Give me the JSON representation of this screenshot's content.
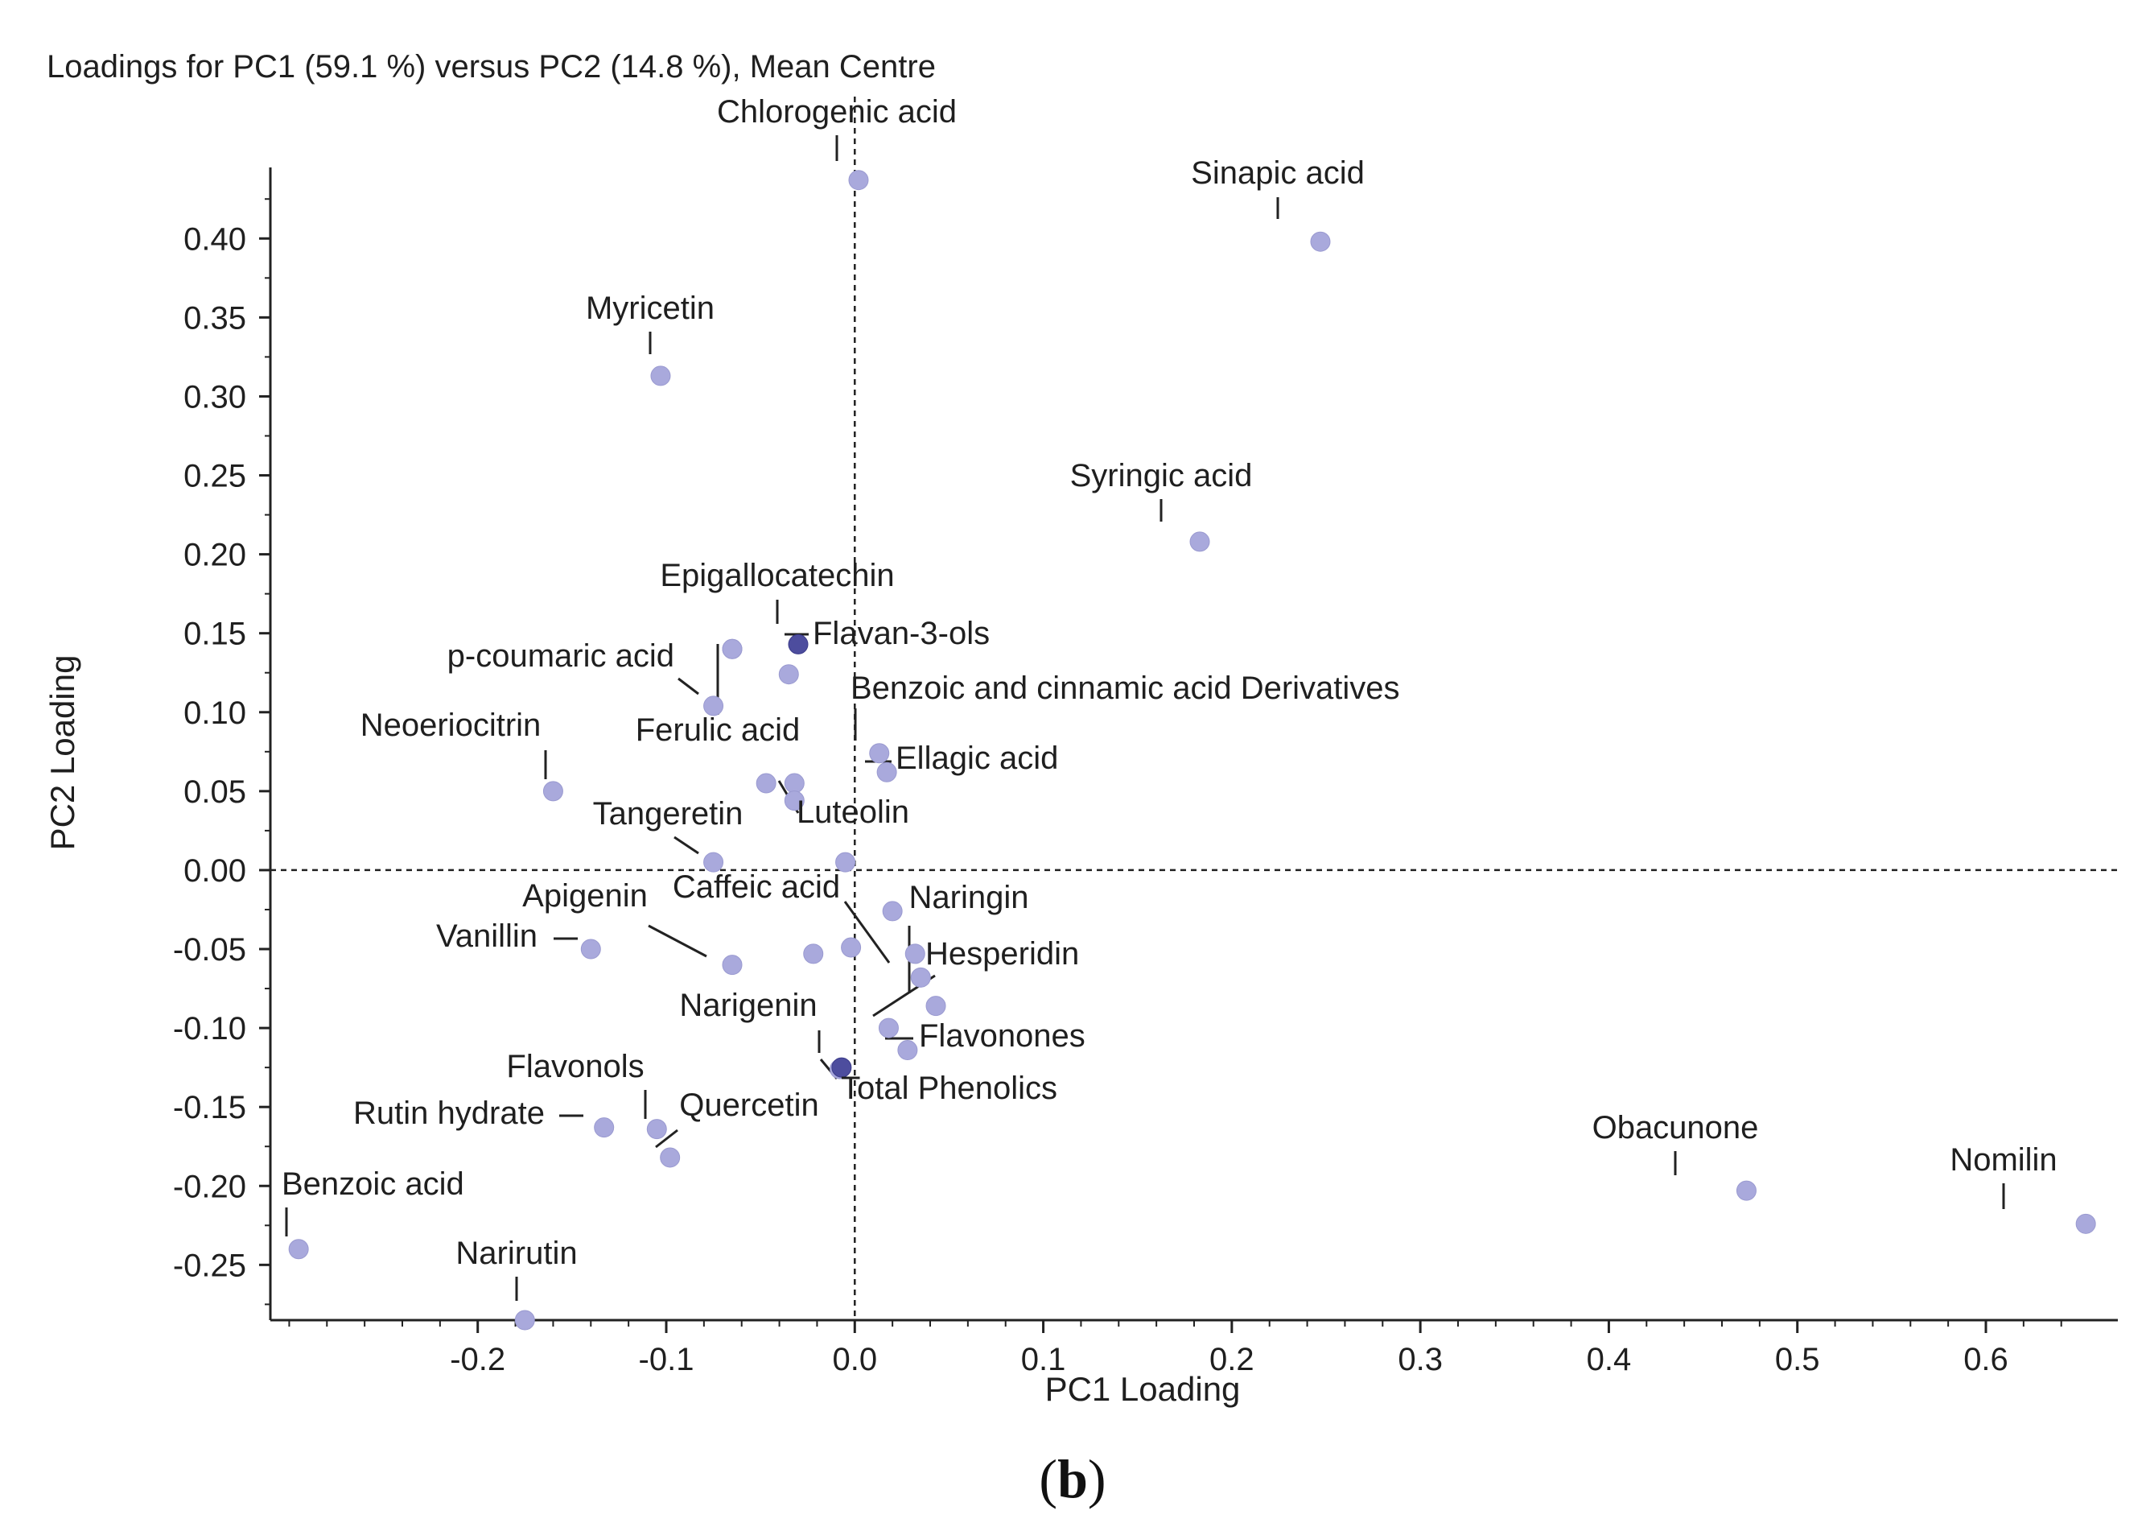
{
  "chart_data": {
    "type": "scatter",
    "title": "Loadings for PC1 (59.1 %) versus PC2 (14.8 %), Mean Centre",
    "xlabel": "PC1 Loading",
    "ylabel": "PC2 Loading",
    "xlim": [
      -0.31,
      0.67
    ],
    "ylim": [
      -0.285,
      0.445
    ],
    "xticks": [
      -0.2,
      -0.1,
      0.0,
      0.1,
      0.2,
      0.3,
      0.4,
      0.5,
      0.6
    ],
    "xtick_labels": [
      "-0.2",
      "-0.1",
      "0.0",
      "0.1",
      "0.2",
      "0.3",
      "0.4",
      "0.5",
      "0.6"
    ],
    "yticks": [
      0.4,
      0.35,
      0.3,
      0.25,
      0.2,
      0.15,
      0.1,
      0.05,
      0.0,
      -0.05,
      -0.1,
      -0.15,
      -0.2,
      -0.25
    ],
    "ytick_labels": [
      "0.40",
      "0.35",
      "0.30",
      "0.25",
      "0.20",
      "0.15",
      "0.10",
      "0.05",
      "0.00",
      "-0.05",
      "-0.10",
      "-0.15",
      "-0.20",
      "-0.25"
    ],
    "reference_lines": {
      "x": 0.0,
      "y": 0.0,
      "style": "dashed"
    },
    "point_color": "#a9a9dc",
    "group_point_color": "#4d4d9e",
    "points": [
      {
        "name": "Chlorogenic acid",
        "x": 0.002,
        "y": 0.437,
        "group": false
      },
      {
        "name": "Sinapic acid",
        "x": 0.247,
        "y": 0.398,
        "group": false
      },
      {
        "name": "Myricetin",
        "x": -0.103,
        "y": 0.313,
        "group": false
      },
      {
        "name": "Syringic acid",
        "x": 0.183,
        "y": 0.208,
        "group": false
      },
      {
        "name": "Epigallocatechin",
        "x": -0.065,
        "y": 0.14,
        "group": false
      },
      {
        "name": "Flavan-3-ols",
        "x": -0.03,
        "y": 0.143,
        "group": true
      },
      {
        "name": "",
        "x": -0.035,
        "y": 0.124,
        "group": false
      },
      {
        "name": "p-coumaric acid",
        "x": -0.075,
        "y": 0.104,
        "group": false
      },
      {
        "name": "Ferulic acid",
        "x": -0.065,
        "y": 0.14,
        "group": false
      },
      {
        "name": "Benzoic and cinnamic acid Derivatives",
        "x": 0.013,
        "y": 0.074,
        "group": false
      },
      {
        "name": "Ellagic acid",
        "x": 0.017,
        "y": 0.062,
        "group": false
      },
      {
        "name": "Neoeriocitrin",
        "x": -0.16,
        "y": 0.05,
        "group": false
      },
      {
        "name": "",
        "x": -0.047,
        "y": 0.055,
        "group": false
      },
      {
        "name": "Luteolin",
        "x": -0.032,
        "y": 0.055,
        "group": false
      },
      {
        "name": "",
        "x": -0.032,
        "y": 0.044,
        "group": false
      },
      {
        "name": "Tangeretin",
        "x": -0.075,
        "y": 0.005,
        "group": false
      },
      {
        "name": "",
        "x": -0.005,
        "y": 0.005,
        "group": false
      },
      {
        "name": "Caffeic acid",
        "x": 0.035,
        "y": -0.068,
        "group": false
      },
      {
        "name": "",
        "x": 0.02,
        "y": -0.026,
        "group": false
      },
      {
        "name": "Naringin",
        "x": 0.043,
        "y": -0.086,
        "group": false
      },
      {
        "name": "",
        "x": 0.032,
        "y": -0.053,
        "group": false
      },
      {
        "name": "",
        "x": -0.002,
        "y": -0.049,
        "group": false
      },
      {
        "name": "",
        "x": -0.022,
        "y": -0.053,
        "group": false
      },
      {
        "name": "Apigenin",
        "x": -0.065,
        "y": -0.06,
        "group": false
      },
      {
        "name": "Vanillin",
        "x": -0.14,
        "y": -0.05,
        "group": false
      },
      {
        "name": "Hesperidin",
        "x": 0.018,
        "y": -0.1,
        "group": false
      },
      {
        "name": "Flavonones",
        "x": 0.028,
        "y": -0.114,
        "group": false
      },
      {
        "name": "Narigenin",
        "x": -0.008,
        "y": -0.126,
        "group": false
      },
      {
        "name": "Total Phenolics",
        "x": -0.007,
        "y": -0.125,
        "group": true
      },
      {
        "name": "Flavonols",
        "x": -0.105,
        "y": -0.164,
        "group": false
      },
      {
        "name": "Rutin hydrate",
        "x": -0.133,
        "y": -0.163,
        "group": false
      },
      {
        "name": "Quercetin",
        "x": -0.098,
        "y": -0.182,
        "group": false
      },
      {
        "name": "Obacunone",
        "x": 0.473,
        "y": -0.203,
        "group": false
      },
      {
        "name": "Nomilin",
        "x": 0.653,
        "y": -0.224,
        "group": false
      },
      {
        "name": "Benzoic acid",
        "x": -0.295,
        "y": -0.24,
        "group": false
      },
      {
        "name": "Narirutin",
        "x": -0.175,
        "y": -0.285,
        "group": false
      }
    ],
    "annotations": []
  },
  "panel_label": {
    "open": "(",
    "letter": "b",
    "close": ")"
  }
}
